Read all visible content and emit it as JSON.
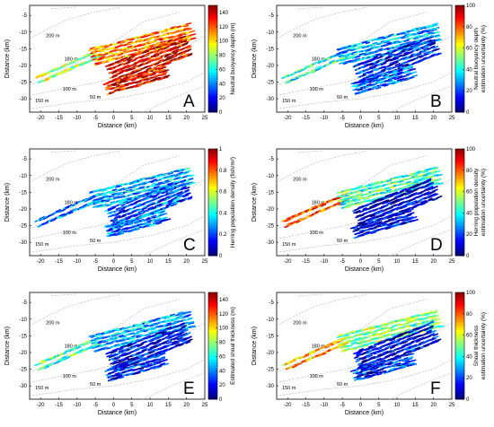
{
  "chart_data": [
    {
      "type": "heatmap",
      "panel": "A",
      "xlabel": "Distance (km)",
      "ylabel": "Distance (km)",
      "xticks": [
        -20,
        -15,
        -10,
        -5,
        0,
        5,
        10,
        15,
        20,
        25
      ],
      "yticks": [
        -5,
        -10,
        -15,
        -20,
        -25,
        -30
      ],
      "xlim": [
        -23,
        25
      ],
      "ylim": [
        -34,
        -2
      ],
      "contours": [
        "200 m",
        "180 m",
        "100 m",
        "150 m",
        "50 m"
      ],
      "colorbar": {
        "label": "Neutral buoyancy depth (m)",
        "ticks": [
          0,
          20,
          40,
          60,
          80,
          100,
          120,
          140
        ],
        "min": 0,
        "max": 150,
        "colormap": "jet"
      },
      "fields": {
        "shelf_strip": 0.55,
        "upper_band": 0.75,
        "main_body": 0.9,
        "lower_band": 0.88
      }
    },
    {
      "type": "heatmap",
      "panel": "B",
      "xlabel": "Distance (km)",
      "ylabel": "Distance (km)",
      "xticks": [
        -20,
        -15,
        -10,
        -5,
        0,
        5,
        10,
        15,
        20,
        25
      ],
      "yticks": [
        -5,
        -10,
        -15,
        -20,
        -25,
        -30
      ],
      "xlim": [
        -23,
        25
      ],
      "ylim": [
        -34,
        -2
      ],
      "contours": [
        "200 m",
        "180 m",
        "100 m",
        "150 m",
        "50 m"
      ],
      "colorbar": {
        "label": "Neutral buoyancy depth\nestimation uncertainty (%)",
        "ticks": [
          0,
          20,
          40,
          60,
          80,
          100
        ],
        "min": 0,
        "max": 100,
        "colormap": "jet"
      },
      "fields": {
        "shelf_strip": 0.4,
        "upper_band": 0.3,
        "main_body": 0.15,
        "lower_band": 0.2
      }
    },
    {
      "type": "heatmap",
      "panel": "C",
      "xlabel": "Distance (km)",
      "ylabel": "Distance (km)",
      "xticks": [
        -20,
        -15,
        -10,
        -5,
        0,
        5,
        10,
        15,
        20,
        25
      ],
      "yticks": [
        -5,
        -10,
        -15,
        -20,
        -25,
        -30
      ],
      "xlim": [
        -23,
        25
      ],
      "ylim": [
        -34,
        -2
      ],
      "contours": [
        "200 m",
        "180 m",
        "100 m",
        "150 m",
        "50 m"
      ],
      "colorbar": {
        "label": "Herring population density (fish/m²)",
        "ticks": [
          0,
          0.2,
          0.4,
          0.6,
          0.8,
          1
        ],
        "min": 0,
        "max": 1,
        "colormap": "jet"
      },
      "fields": {
        "shelf_strip": 0.25,
        "upper_band": 0.3,
        "main_body": 0.2,
        "lower_band": 0.25
      }
    },
    {
      "type": "heatmap",
      "panel": "D",
      "xlabel": "Distance (km)",
      "ylabel": "Distance (km)",
      "xticks": [
        -20,
        -15,
        -10,
        -5,
        0,
        5,
        10,
        15,
        20,
        25
      ],
      "yticks": [
        -5,
        -10,
        -15,
        -20,
        -25,
        -30
      ],
      "xlim": [
        -23,
        25
      ],
      "ylim": [
        -34,
        -2
      ],
      "contours": [
        "200 m",
        "180 m",
        "100 m",
        "150 m",
        "50 m"
      ],
      "colorbar": {
        "label": "Herring population density\nestimation uncertainty (%)",
        "ticks": [
          0,
          20,
          40,
          60,
          80,
          100
        ],
        "min": 0,
        "max": 100,
        "colormap": "jet"
      },
      "fields": {
        "shelf_strip": 0.8,
        "upper_band": 0.45,
        "main_body": 0.08,
        "lower_band": 0.1
      }
    },
    {
      "type": "heatmap",
      "panel": "E",
      "xlabel": "Distance (km)",
      "ylabel": "Distance (km)",
      "xticks": [
        -20,
        -15,
        -10,
        -5,
        0,
        5,
        10,
        15,
        20,
        25
      ],
      "yticks": [
        -5,
        -10,
        -15,
        -20,
        -25,
        -30
      ],
      "xlim": [
        -23,
        25
      ],
      "ylim": [
        -34,
        -2
      ],
      "contours": [
        "200 m",
        "180 m",
        "100 m",
        "150 m",
        "50 m"
      ],
      "colorbar": {
        "label": "Estimated shoal thickness (m)",
        "ticks": [
          0,
          20,
          40,
          60,
          80,
          100,
          120,
          140
        ],
        "min": 0,
        "max": 150,
        "colormap": "jet"
      },
      "fields": {
        "shelf_strip": 0.45,
        "upper_band": 0.3,
        "main_body": 0.12,
        "lower_band": 0.15
      }
    },
    {
      "type": "heatmap",
      "panel": "F",
      "xlabel": "Distance (km)",
      "ylabel": "Distance (km)",
      "xticks": [
        -20,
        -15,
        -10,
        -5,
        0,
        5,
        10,
        15,
        20,
        25
      ],
      "yticks": [
        -5,
        -10,
        -15,
        -20,
        -25,
        -30
      ],
      "xlim": [
        -23,
        25
      ],
      "ylim": [
        -34,
        -2
      ],
      "contours": [
        "200 m",
        "180 m",
        "100 m",
        "150 m",
        "50 m"
      ],
      "colorbar": {
        "label": "Shoal thickness\nestimation uncertainty (%)",
        "ticks": [
          0,
          20,
          40,
          60,
          80,
          100
        ],
        "min": 0,
        "max": 100,
        "colormap": "jet"
      },
      "fields": {
        "shelf_strip": 0.7,
        "upper_band": 0.5,
        "main_body": 0.1,
        "lower_band": 0.15
      }
    }
  ]
}
